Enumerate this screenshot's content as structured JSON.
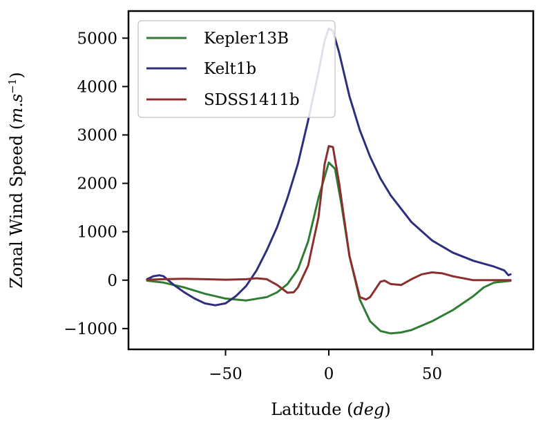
{
  "chart_data": {
    "type": "line",
    "title": "",
    "xlabel_text": "Latitude (",
    "xlabel_italic": "deg",
    "xlabel_close": ")",
    "ylabel_text": "Zonal Wind Speed (",
    "ylabel_italic_a": "m",
    "ylabel_dot": ".",
    "ylabel_italic_b": "s",
    "ylabel_sup": "−1",
    "ylabel_close": ")",
    "xlim": [
      -97,
      99
    ],
    "ylim": [
      -1430,
      5560
    ],
    "xticks": [
      -50,
      0,
      50
    ],
    "xtick_labels": [
      "−50",
      "0",
      "50"
    ],
    "yticks": [
      -1000,
      0,
      1000,
      2000,
      3000,
      4000,
      5000
    ],
    "ytick_labels": [
      "−1000",
      "0",
      "1000",
      "2000",
      "3000",
      "4000",
      "5000"
    ],
    "legend_position": "upper-left",
    "series": [
      {
        "name": "Kepler13B",
        "color": "#2e7d32",
        "x": [
          -88,
          -80,
          -70,
          -60,
          -50,
          -40,
          -30,
          -25,
          -20,
          -15,
          -10,
          -5,
          0,
          3,
          6,
          10,
          15,
          20,
          25,
          30,
          35,
          40,
          50,
          60,
          70,
          75,
          80,
          88
        ],
        "y": [
          -10,
          -50,
          -150,
          -280,
          -380,
          -420,
          -350,
          -250,
          -80,
          220,
          800,
          1700,
          2430,
          2300,
          1600,
          500,
          -400,
          -850,
          -1050,
          -1100,
          -1080,
          -1030,
          -850,
          -620,
          -330,
          -150,
          -50,
          -15
        ]
      },
      {
        "name": "Kelt1b",
        "color": "#2e2e7e",
        "x": [
          -88,
          -85,
          -82,
          -80,
          -75,
          -70,
          -65,
          -60,
          -55,
          -50,
          -45,
          -40,
          -35,
          -30,
          -25,
          -20,
          -15,
          -10,
          -5,
          -2,
          0,
          2,
          5,
          10,
          15,
          20,
          25,
          30,
          40,
          50,
          60,
          70,
          80,
          85,
          87,
          88
        ],
        "y": [
          20,
          80,
          100,
          80,
          -100,
          -250,
          -380,
          -480,
          -520,
          -480,
          -330,
          -120,
          200,
          620,
          1100,
          1700,
          2400,
          3300,
          4300,
          4950,
          5200,
          5150,
          4700,
          3800,
          3100,
          2550,
          2100,
          1750,
          1200,
          820,
          570,
          400,
          280,
          200,
          100,
          120
        ]
      },
      {
        "name": "SDSS1411b",
        "color": "#8b2e2e",
        "x": [
          -88,
          -80,
          -70,
          -60,
          -50,
          -40,
          -35,
          -30,
          -25,
          -20,
          -17,
          -15,
          -10,
          -5,
          -2,
          0,
          2,
          5,
          10,
          15,
          18,
          20,
          25,
          27,
          30,
          35,
          40,
          45,
          50,
          55,
          60,
          70,
          80,
          88
        ],
        "y": [
          10,
          20,
          30,
          20,
          10,
          20,
          40,
          20,
          -100,
          -260,
          -250,
          -150,
          300,
          1300,
          2400,
          2770,
          2750,
          2000,
          500,
          -350,
          -400,
          -350,
          -30,
          -10,
          -80,
          -100,
          20,
          120,
          160,
          140,
          80,
          0,
          0,
          0
        ]
      }
    ]
  }
}
